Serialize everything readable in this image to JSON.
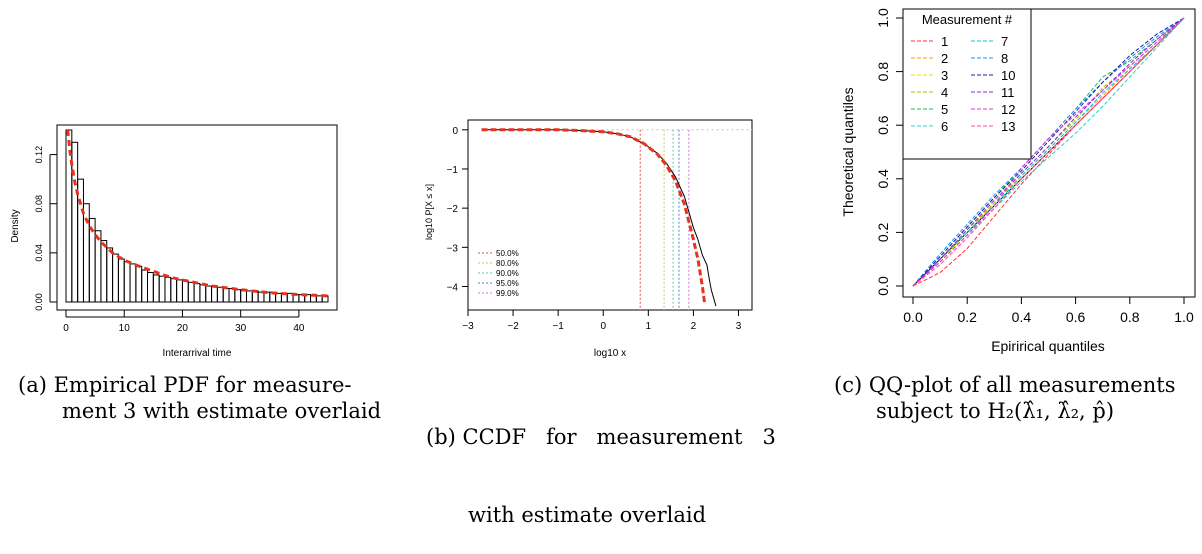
{
  "captions": {
    "a": {
      "line1": "(a) Empirical PDF for measure-",
      "line2": "ment 3 with estimate overlaid"
    },
    "b": {
      "line1": "(b) CCDF   for   measurement   3",
      "line2": "with estimate overlaid"
    },
    "c": {
      "line1": "(c) QQ-plot of all measurements",
      "line2": "subject to H₂(λ̂₁, λ̂₂, p̂)"
    }
  },
  "chart_data": [
    {
      "type": "bar",
      "title": "",
      "xlabel": "Interarrival time",
      "ylabel": "Density",
      "xlim": [
        0,
        45
      ],
      "ylim": [
        0,
        0.14
      ],
      "xticks": [
        "0",
        "10",
        "20",
        "30",
        "40"
      ],
      "yticks": [
        "0.00",
        "0.04",
        "0.08",
        "0.12"
      ],
      "bin_width": 1,
      "bin_start": 0,
      "values": [
        0.14,
        0.13,
        0.1,
        0.08,
        0.068,
        0.058,
        0.05,
        0.044,
        0.039,
        0.035,
        0.033,
        0.031,
        0.029,
        0.026,
        0.024,
        0.022,
        0.021,
        0.02,
        0.019,
        0.018,
        0.017,
        0.016,
        0.015,
        0.014,
        0.013,
        0.013,
        0.012,
        0.011,
        0.011,
        0.01,
        0.01,
        0.009,
        0.009,
        0.008,
        0.008,
        0.008,
        0.007,
        0.007,
        0.007,
        0.006,
        0.006,
        0.006,
        0.005,
        0.005,
        0.005
      ],
      "estimate": {
        "style": "dashed red",
        "x": [
          0.3,
          0.7,
          1,
          1.5,
          2,
          3,
          4,
          5,
          6,
          8,
          10,
          12,
          15,
          18,
          20,
          25,
          30,
          35,
          40,
          45
        ],
        "y": [
          0.14,
          0.122,
          0.112,
          0.098,
          0.088,
          0.072,
          0.062,
          0.055,
          0.049,
          0.04,
          0.034,
          0.03,
          0.025,
          0.02,
          0.018,
          0.013,
          0.01,
          0.0075,
          0.006,
          0.005
        ]
      }
    },
    {
      "type": "line",
      "title": "",
      "xlabel": "log10 x",
      "ylabel": "log10 P[X ≤ x]",
      "xlim": [
        -3,
        3.3
      ],
      "ylim": [
        -4.6,
        0.25
      ],
      "xticks": [
        "−3",
        "−2",
        "−1",
        "0",
        "1",
        "2",
        "3"
      ],
      "yticks": [
        "−4",
        "−3",
        "−2",
        "−1",
        "0"
      ],
      "series": [
        {
          "style": "solid black",
          "x": [
            -2.7,
            -2.0,
            -1.5,
            -1.0,
            -0.5,
            0,
            0.3,
            0.6,
            0.9,
            1.2,
            1.4,
            1.6,
            1.8,
            2.0,
            2.1,
            2.2,
            2.3,
            2.35,
            2.4,
            2.45,
            2.5
          ],
          "y": [
            0,
            0,
            0,
            0,
            -0.02,
            -0.05,
            -0.1,
            -0.18,
            -0.35,
            -0.6,
            -0.85,
            -1.2,
            -1.7,
            -2.5,
            -2.8,
            -3.2,
            -3.45,
            -3.8,
            -4.1,
            -4.3,
            -4.5
          ]
        },
        {
          "style": "dashed red",
          "x": [
            -2.7,
            -2.0,
            -1.5,
            -1.0,
            -0.5,
            0,
            0.3,
            0.6,
            0.9,
            1.2,
            1.4,
            1.6,
            1.8,
            2.0,
            2.1,
            2.2,
            2.25
          ],
          "y": [
            0,
            0,
            0,
            0,
            -0.02,
            -0.05,
            -0.1,
            -0.18,
            -0.35,
            -0.62,
            -0.9,
            -1.3,
            -1.9,
            -2.8,
            -3.3,
            -4.0,
            -4.45
          ]
        }
      ],
      "quantiles": [
        {
          "name": "50.0%",
          "x": 0.82,
          "color": "#e74c3c"
        },
        {
          "name": "80.0%",
          "x": 1.35,
          "color": "#c8c84a"
        },
        {
          "name": "90.0%",
          "x": 1.55,
          "color": "#5ad0a0"
        },
        {
          "name": "95.0%",
          "x": 1.68,
          "color": "#4a80d8"
        },
        {
          "name": "99.0%",
          "x": 1.9,
          "color": "#d070e0"
        }
      ],
      "legend_position": "bottom-left"
    },
    {
      "type": "line",
      "title": "",
      "xlabel": "Epirirical quantiles",
      "ylabel": "Theoretical quantiles",
      "xlim": [
        0,
        1
      ],
      "ylim": [
        0,
        1
      ],
      "xticks": [
        "0.0",
        "0.2",
        "0.4",
        "0.6",
        "0.8",
        "1.0"
      ],
      "yticks": [
        "0.0",
        "0.2",
        "0.4",
        "0.6",
        "0.8",
        "1.0"
      ],
      "legend_title": "Measurement #",
      "legend_position": "top-left",
      "series": [
        {
          "name": "1",
          "color": "#ff3030",
          "x": [
            0,
            0.1,
            0.2,
            0.3,
            0.4,
            0.5,
            0.6,
            0.7,
            0.8,
            0.9,
            1
          ],
          "y": [
            0,
            0.05,
            0.14,
            0.26,
            0.38,
            0.49,
            0.6,
            0.7,
            0.8,
            0.9,
            1
          ]
        },
        {
          "name": "2",
          "color": "#ff9900",
          "x": [
            0,
            0.1,
            0.2,
            0.3,
            0.4,
            0.5,
            0.6,
            0.7,
            0.8,
            0.9,
            1
          ],
          "y": [
            0,
            0.1,
            0.21,
            0.31,
            0.41,
            0.51,
            0.61,
            0.71,
            0.81,
            0.9,
            1
          ]
        },
        {
          "name": "3",
          "color": "#e6e600",
          "x": [
            0,
            0.1,
            0.2,
            0.3,
            0.4,
            0.5,
            0.6,
            0.7,
            0.8,
            0.9,
            1
          ],
          "y": [
            0,
            0.09,
            0.2,
            0.3,
            0.4,
            0.5,
            0.6,
            0.7,
            0.8,
            0.9,
            1
          ]
        },
        {
          "name": "4",
          "color": "#99cc00",
          "x": [
            0,
            0.1,
            0.2,
            0.3,
            0.4,
            0.5,
            0.6,
            0.7,
            0.8,
            0.9,
            1
          ],
          "y": [
            0,
            0.1,
            0.2,
            0.31,
            0.42,
            0.52,
            0.62,
            0.74,
            0.82,
            0.91,
            1
          ]
        },
        {
          "name": "5",
          "color": "#22bb44",
          "x": [
            0,
            0.1,
            0.2,
            0.3,
            0.4,
            0.5,
            0.6,
            0.7,
            0.8,
            0.9,
            1
          ],
          "y": [
            0,
            0.11,
            0.22,
            0.33,
            0.44,
            0.55,
            0.66,
            0.78,
            0.84,
            0.92,
            1
          ]
        },
        {
          "name": "6",
          "color": "#33cccc",
          "x": [
            0,
            0.1,
            0.2,
            0.3,
            0.4,
            0.5,
            0.6,
            0.7,
            0.8,
            0.9,
            1
          ],
          "y": [
            0,
            0.09,
            0.19,
            0.29,
            0.39,
            0.48,
            0.57,
            0.67,
            0.78,
            0.89,
            1
          ]
        },
        {
          "name": "7",
          "color": "#00c8e0",
          "x": [
            0,
            0.1,
            0.2,
            0.3,
            0.4,
            0.5,
            0.6,
            0.7,
            0.8,
            0.9,
            1
          ],
          "y": [
            0,
            0.1,
            0.2,
            0.3,
            0.41,
            0.51,
            0.61,
            0.72,
            0.81,
            0.9,
            1
          ]
        },
        {
          "name": "8",
          "color": "#1e90ff",
          "x": [
            0,
            0.1,
            0.2,
            0.3,
            0.4,
            0.5,
            0.6,
            0.7,
            0.8,
            0.9,
            1
          ],
          "y": [
            0,
            0.12,
            0.23,
            0.34,
            0.44,
            0.55,
            0.66,
            0.76,
            0.85,
            0.93,
            1
          ]
        },
        {
          "name": "10",
          "color": "#1a1aa6",
          "x": [
            0,
            0.1,
            0.2,
            0.3,
            0.4,
            0.5,
            0.6,
            0.7,
            0.8,
            0.9,
            1
          ],
          "y": [
            0,
            0.11,
            0.22,
            0.33,
            0.43,
            0.54,
            0.65,
            0.76,
            0.86,
            0.94,
            1
          ]
        },
        {
          "name": "11",
          "color": "#8a2be2",
          "x": [
            0,
            0.1,
            0.2,
            0.3,
            0.4,
            0.5,
            0.6,
            0.7,
            0.8,
            0.9,
            1
          ],
          "y": [
            0,
            0.1,
            0.21,
            0.32,
            0.42,
            0.52,
            0.63,
            0.73,
            0.83,
            0.92,
            1
          ]
        },
        {
          "name": "12",
          "color": "#dd33dd",
          "x": [
            0,
            0.1,
            0.2,
            0.3,
            0.4,
            0.5,
            0.6,
            0.7,
            0.8,
            0.9,
            1
          ],
          "y": [
            0,
            0.09,
            0.19,
            0.3,
            0.44,
            0.55,
            0.64,
            0.73,
            0.82,
            0.91,
            1
          ]
        },
        {
          "name": "13",
          "color": "#ff44aa",
          "x": [
            0,
            0.1,
            0.2,
            0.3,
            0.4,
            0.5,
            0.6,
            0.7,
            0.8,
            0.9,
            1
          ],
          "y": [
            0,
            0.08,
            0.18,
            0.29,
            0.4,
            0.5,
            0.6,
            0.7,
            0.8,
            0.9,
            1
          ]
        }
      ]
    }
  ]
}
